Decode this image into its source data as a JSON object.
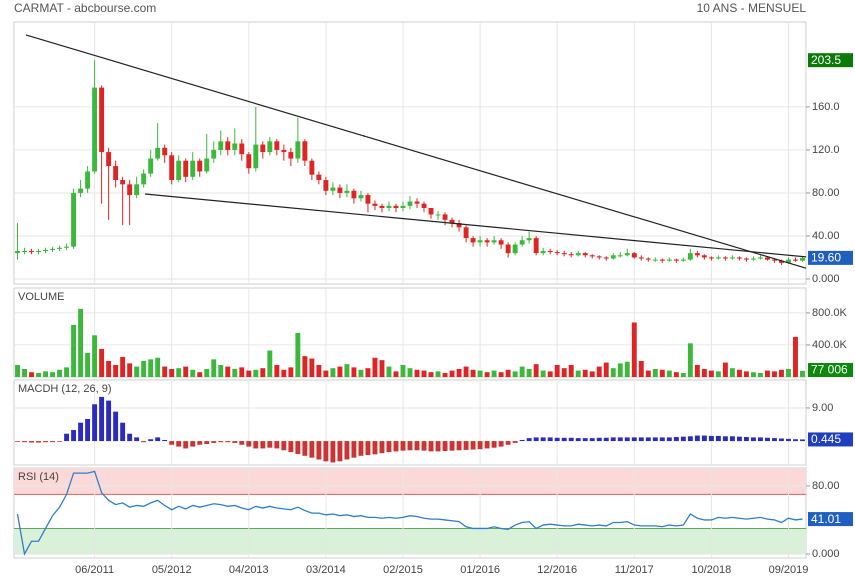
{
  "header": {
    "title": "CARMAT - abcbourse.com",
    "period": "10 ANS - MENSUEL"
  },
  "chart_data": [
    {
      "type": "candlestick",
      "categories": [
        null,
        null,
        null,
        null,
        null,
        null,
        null,
        null,
        null,
        null,
        null,
        "06/2011",
        null,
        null,
        null,
        null,
        null,
        null,
        null,
        null,
        null,
        null,
        "05/2012",
        null,
        null,
        null,
        null,
        null,
        null,
        null,
        null,
        null,
        null,
        "04/2013",
        null,
        null,
        null,
        null,
        null,
        null,
        null,
        null,
        null,
        null,
        "03/2014",
        null,
        null,
        null,
        null,
        null,
        null,
        null,
        null,
        null,
        null,
        "02/2015",
        null,
        null,
        null,
        null,
        null,
        null,
        null,
        null,
        null,
        null,
        "01/2016",
        null,
        null,
        null,
        null,
        null,
        null,
        null,
        null,
        null,
        null,
        "12/2016",
        null,
        null,
        null,
        null,
        null,
        null,
        null,
        null,
        null,
        null,
        "11/2017",
        null,
        null,
        null,
        null,
        null,
        null,
        null,
        null,
        null,
        null,
        "10/2018",
        null,
        null,
        null,
        null,
        null,
        null,
        null,
        null,
        null,
        null,
        "09/2019",
        null,
        null
      ],
      "open": [
        24,
        26,
        26,
        25,
        26,
        27,
        28,
        29,
        30,
        80,
        84,
        100,
        178,
        118,
        105,
        92,
        88,
        78,
        88,
        98,
        112,
        122,
        115,
        92,
        110,
        95,
        110,
        100,
        112,
        120,
        128,
        120,
        126,
        116,
        103,
        125,
        118,
        128,
        120,
        118,
        112,
        128,
        110,
        97,
        92,
        82,
        85,
        80,
        82,
        75,
        78,
        70,
        68,
        66,
        68,
        66,
        68,
        72,
        70,
        66,
        60,
        60,
        55,
        52,
        48,
        38,
        34,
        36,
        34,
        36,
        32,
        24,
        32,
        36,
        38,
        24,
        26,
        25,
        24,
        23,
        22,
        24,
        22,
        21,
        20,
        19,
        22,
        22,
        24,
        20,
        19,
        18,
        18,
        17,
        18,
        17,
        18,
        24,
        22,
        20,
        19,
        20,
        19,
        20,
        19,
        18,
        19,
        20,
        18,
        17,
        15,
        18,
        17
      ],
      "high": [
        52,
        29,
        28,
        28,
        29,
        30,
        31,
        33,
        84,
        92,
        105,
        203.5,
        180,
        122,
        110,
        95,
        92,
        95,
        102,
        120,
        145,
        125,
        118,
        115,
        112,
        118,
        112,
        135,
        128,
        138,
        132,
        140,
        130,
        118,
        160,
        128,
        132,
        130,
        125,
        122,
        150,
        130,
        112,
        100,
        95,
        90,
        88,
        88,
        84,
        82,
        80,
        73,
        70,
        72,
        70,
        72,
        77,
        75,
        72,
        66,
        63,
        62,
        57,
        55,
        50,
        40,
        40,
        38,
        40,
        38,
        34,
        34,
        40,
        44,
        40,
        29,
        28,
        27,
        26,
        25,
        26,
        25,
        23,
        22,
        21,
        24,
        25,
        28,
        25,
        22,
        20,
        20,
        19,
        20,
        19,
        20,
        28,
        26,
        23,
        21,
        22,
        21,
        22,
        21,
        20,
        21,
        22,
        21,
        19,
        18,
        20,
        20,
        21
      ],
      "low": [
        18,
        23,
        23,
        23,
        24,
        25,
        26,
        27,
        28,
        76,
        80,
        98,
        70,
        55,
        85,
        50,
        50,
        75,
        85,
        95,
        110,
        108,
        88,
        90,
        90,
        92,
        95,
        98,
        108,
        115,
        115,
        115,
        110,
        98,
        100,
        112,
        115,
        115,
        110,
        105,
        108,
        105,
        92,
        88,
        78,
        78,
        75,
        76,
        70,
        72,
        62,
        64,
        62,
        63,
        62,
        63,
        65,
        66,
        62,
        56,
        55,
        50,
        48,
        44,
        34,
        30,
        30,
        30,
        32,
        28,
        20,
        22,
        30,
        33,
        22,
        22,
        23,
        22,
        21,
        20,
        21,
        20,
        19,
        18,
        17,
        18,
        20,
        21,
        19,
        17,
        16,
        16,
        15,
        16,
        15,
        16,
        17,
        20,
        18,
        17,
        18,
        17,
        18,
        17,
        16,
        17,
        18,
        17,
        15,
        13,
        14,
        16,
        16
      ],
      "close": [
        26,
        26,
        25,
        26,
        27,
        28,
        29,
        30,
        80,
        84,
        100,
        178,
        118,
        105,
        92,
        88,
        78,
        88,
        98,
        112,
        122,
        115,
        92,
        110,
        95,
        110,
        100,
        112,
        120,
        128,
        120,
        126,
        116,
        103,
        125,
        118,
        128,
        120,
        118,
        112,
        128,
        110,
        97,
        92,
        82,
        85,
        80,
        82,
        75,
        78,
        70,
        68,
        66,
        68,
        66,
        68,
        72,
        70,
        66,
        60,
        60,
        55,
        52,
        48,
        38,
        34,
        36,
        34,
        36,
        32,
        24,
        32,
        36,
        38,
        24,
        26,
        25,
        24,
        23,
        22,
        24,
        22,
        21,
        20,
        19,
        22,
        22,
        24,
        20,
        19,
        18,
        18,
        17,
        18,
        17,
        18,
        24,
        22,
        20,
        19,
        20,
        19,
        20,
        19,
        18,
        19,
        20,
        18,
        17,
        15,
        18,
        17,
        19.6
      ],
      "up_color": "#3cb83c",
      "down_color": "#e02424",
      "ylim": [
        -4.7,
        239
      ],
      "yticks": [
        {
          "value": 0,
          "label": "0.000"
        },
        {
          "value": 40,
          "label": "40.00"
        },
        {
          "value": 80,
          "label": "80.00"
        },
        {
          "value": 120,
          "label": "120.0"
        },
        {
          "value": 160,
          "label": "160.0"
        }
      ],
      "grid": true,
      "markers": [
        {
          "value": 203.5,
          "label": "203.5",
          "color": "#0b7a0b"
        },
        {
          "value": 19.6,
          "label": "19.60",
          "color": "#1f5fbf"
        }
      ],
      "trendlines": [
        {
          "from": [
            1.2,
            227
          ],
          "to": [
            112.5,
            10
          ]
        },
        {
          "from": [
            18.2,
            79
          ],
          "to": [
            112.5,
            20.5
          ]
        }
      ]
    },
    {
      "type": "bar",
      "title": "VOLUME",
      "color_by": "candle",
      "up_color": "#3cb83c",
      "down_color": "#e02424",
      "values": [
        150000,
        100000,
        60000,
        50000,
        70000,
        60000,
        90000,
        120000,
        650000,
        850000,
        300000,
        520000,
        350000,
        200000,
        150000,
        250000,
        170000,
        130000,
        200000,
        220000,
        240000,
        130000,
        100000,
        110000,
        130000,
        90000,
        60000,
        100000,
        220000,
        150000,
        130000,
        100000,
        120000,
        80000,
        90000,
        110000,
        330000,
        150000,
        90000,
        120000,
        550000,
        260000,
        230000,
        150000,
        80000,
        110000,
        130000,
        160000,
        120000,
        90000,
        110000,
        240000,
        210000,
        130000,
        70000,
        150000,
        110000,
        90000,
        80000,
        60000,
        70000,
        50000,
        80000,
        100000,
        130000,
        90000,
        80000,
        60000,
        80000,
        60000,
        90000,
        70000,
        130000,
        100000,
        160000,
        80000,
        70000,
        150000,
        110000,
        150000,
        80000,
        90000,
        70000,
        130000,
        180000,
        110000,
        170000,
        190000,
        680000,
        200000,
        80000,
        100000,
        90000,
        80000,
        60000,
        50000,
        420000,
        150000,
        100000,
        80000,
        70000,
        180000,
        110000,
        90000,
        70000,
        60000,
        50000,
        80000,
        70000,
        90000,
        100000,
        500000,
        77006
      ],
      "ylim": [
        0,
        1110000
      ],
      "yticks": [
        {
          "value": 400000,
          "label": "400.0K"
        },
        {
          "value": 800000,
          "label": "800.0K"
        }
      ],
      "grid": true,
      "markers": [
        {
          "value": 77006,
          "label": "77 006",
          "color": "#0b8a0b"
        }
      ]
    },
    {
      "type": "bar",
      "title": "MACDH (12, 26, 9)",
      "color_by": "sign",
      "up_color": "#2b2bbf",
      "down_color": "#cc3333",
      "values": [
        -0.2,
        -0.3,
        -0.4,
        -0.4,
        -0.3,
        -0.3,
        -0.2,
        2,
        3,
        5,
        6,
        10,
        12,
        11,
        8,
        5,
        2,
        1,
        -0.3,
        0.5,
        1,
        0.3,
        -1,
        -1.5,
        -2,
        -1.5,
        -1,
        -0.8,
        -0.5,
        -0.3,
        -0.3,
        -0.5,
        -1,
        -1.5,
        -2,
        -2,
        -1.8,
        -2,
        -2.5,
        -3,
        -3.5,
        -4,
        -4.5,
        -5,
        -5.5,
        -5.8,
        -5.5,
        -5,
        -4.5,
        -4,
        -3.8,
        -3.6,
        -3.3,
        -3,
        -2.8,
        -2.6,
        -2.5,
        -2.5,
        -2.6,
        -2.8,
        -2.8,
        -2.7,
        -2.6,
        -2.5,
        -2.4,
        -2.3,
        -2.2,
        -2,
        -1.8,
        -1.5,
        -1,
        -0.5,
        0.3,
        0.8,
        1,
        1,
        1,
        0.9,
        0.9,
        0.9,
        0.8,
        0.8,
        0.8,
        0.9,
        0.9,
        1,
        1,
        1,
        1,
        1,
        1,
        1,
        1,
        1,
        1.1,
        1.2,
        1.3,
        1.5,
        1.5,
        1.4,
        1.4,
        1.3,
        1.3,
        1.2,
        1.1,
        1,
        1,
        0.9,
        0.8,
        0.7,
        0.6,
        0.5,
        0.445
      ],
      "ylim": [
        -6.5,
        16.6
      ],
      "yticks": [
        {
          "value": 9,
          "label": "9.00"
        }
      ],
      "grid": true,
      "markers": [
        {
          "value": 0.445,
          "label": "0.445",
          "color": "#1f3fbf"
        }
      ]
    },
    {
      "type": "line",
      "title": "RSI (14)",
      "color": "#2f7fc8",
      "values": [
        47,
        0,
        15,
        15,
        30,
        45,
        55,
        70,
        95,
        95,
        95,
        97,
        72,
        63,
        58,
        60,
        55,
        57,
        56,
        60,
        63,
        57,
        52,
        56,
        53,
        57,
        55,
        57,
        59,
        58,
        56,
        57,
        54,
        52,
        56,
        54,
        56,
        54,
        53,
        52,
        55,
        51,
        48,
        48,
        46,
        47,
        45,
        46,
        44,
        45,
        43,
        43,
        42,
        43,
        42,
        43,
        45,
        44,
        42,
        41,
        41,
        40,
        39,
        38,
        32,
        30,
        30,
        30,
        32,
        30,
        29,
        34,
        37,
        38,
        30,
        34,
        35,
        34,
        33,
        33,
        35,
        34,
        33,
        34,
        33,
        37,
        37,
        38,
        34,
        33,
        33,
        33,
        32,
        34,
        33,
        34,
        47,
        42,
        40,
        40,
        43,
        42,
        43,
        42,
        41,
        42,
        43,
        41,
        40,
        37,
        42,
        40,
        41.01
      ],
      "ylim": [
        -4.7,
        101
      ],
      "yticks": [
        {
          "value": 0,
          "label": "0.000"
        },
        {
          "value": 80,
          "label": "80.00"
        }
      ],
      "grid": true,
      "zones": [
        {
          "from": 70,
          "to": 100,
          "color": "#fcd9d9",
          "line": "#e06060"
        },
        {
          "from": 0,
          "to": 30,
          "color": "#d9f0d9",
          "line": "#60a860"
        }
      ],
      "markers": [
        {
          "value": 41.01,
          "label": "41.01",
          "color": "#1f5fbf"
        }
      ]
    }
  ]
}
